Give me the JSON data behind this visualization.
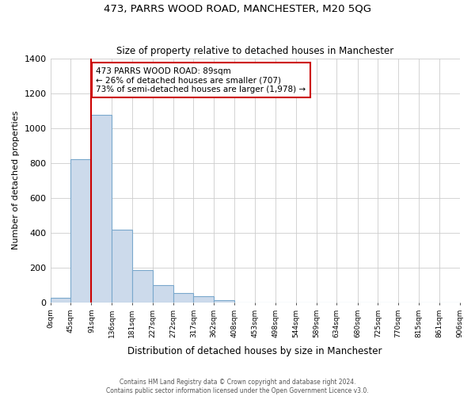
{
  "title1": "473, PARRS WOOD ROAD, MANCHESTER, M20 5QG",
  "title2": "Size of property relative to detached houses in Manchester",
  "xlabel": "Distribution of detached houses by size in Manchester",
  "ylabel": "Number of detached properties",
  "bin_edges": [
    0,
    45,
    91,
    136,
    181,
    227,
    272,
    317,
    362,
    408,
    453,
    498,
    544,
    589,
    634,
    680,
    725,
    770,
    815,
    861,
    906
  ],
  "bar_heights": [
    25,
    820,
    1075,
    415,
    185,
    100,
    55,
    38,
    12,
    0,
    0,
    0,
    0,
    0,
    0,
    0,
    0,
    0,
    0,
    0
  ],
  "bar_color": "#ccdaeb",
  "bar_edge_color": "#7aa8cc",
  "property_line_x": 91,
  "property_line_color": "#cc0000",
  "annotation_line1": "473 PARRS WOOD ROAD: 89sqm",
  "annotation_line2": "← 26% of detached houses are smaller (707)",
  "annotation_line3": "73% of semi-detached houses are larger (1,978) →",
  "annotation_box_color": "#ffffff",
  "annotation_box_edge": "#cc0000",
  "ylim": [
    0,
    1400
  ],
  "yticks": [
    0,
    200,
    400,
    600,
    800,
    1000,
    1200,
    1400
  ],
  "tick_labels": [
    "0sqm",
    "45sqm",
    "91sqm",
    "136sqm",
    "181sqm",
    "227sqm",
    "272sqm",
    "317sqm",
    "362sqm",
    "408sqm",
    "453sqm",
    "498sqm",
    "544sqm",
    "589sqm",
    "634sqm",
    "680sqm",
    "725sqm",
    "770sqm",
    "815sqm",
    "861sqm",
    "906sqm"
  ],
  "footer1": "Contains HM Land Registry data © Crown copyright and database right 2024.",
  "footer2": "Contains public sector information licensed under the Open Government Licence v3.0.",
  "bg_color": "#ffffff",
  "plot_bg_color": "#ffffff",
  "grid_color": "#cccccc"
}
